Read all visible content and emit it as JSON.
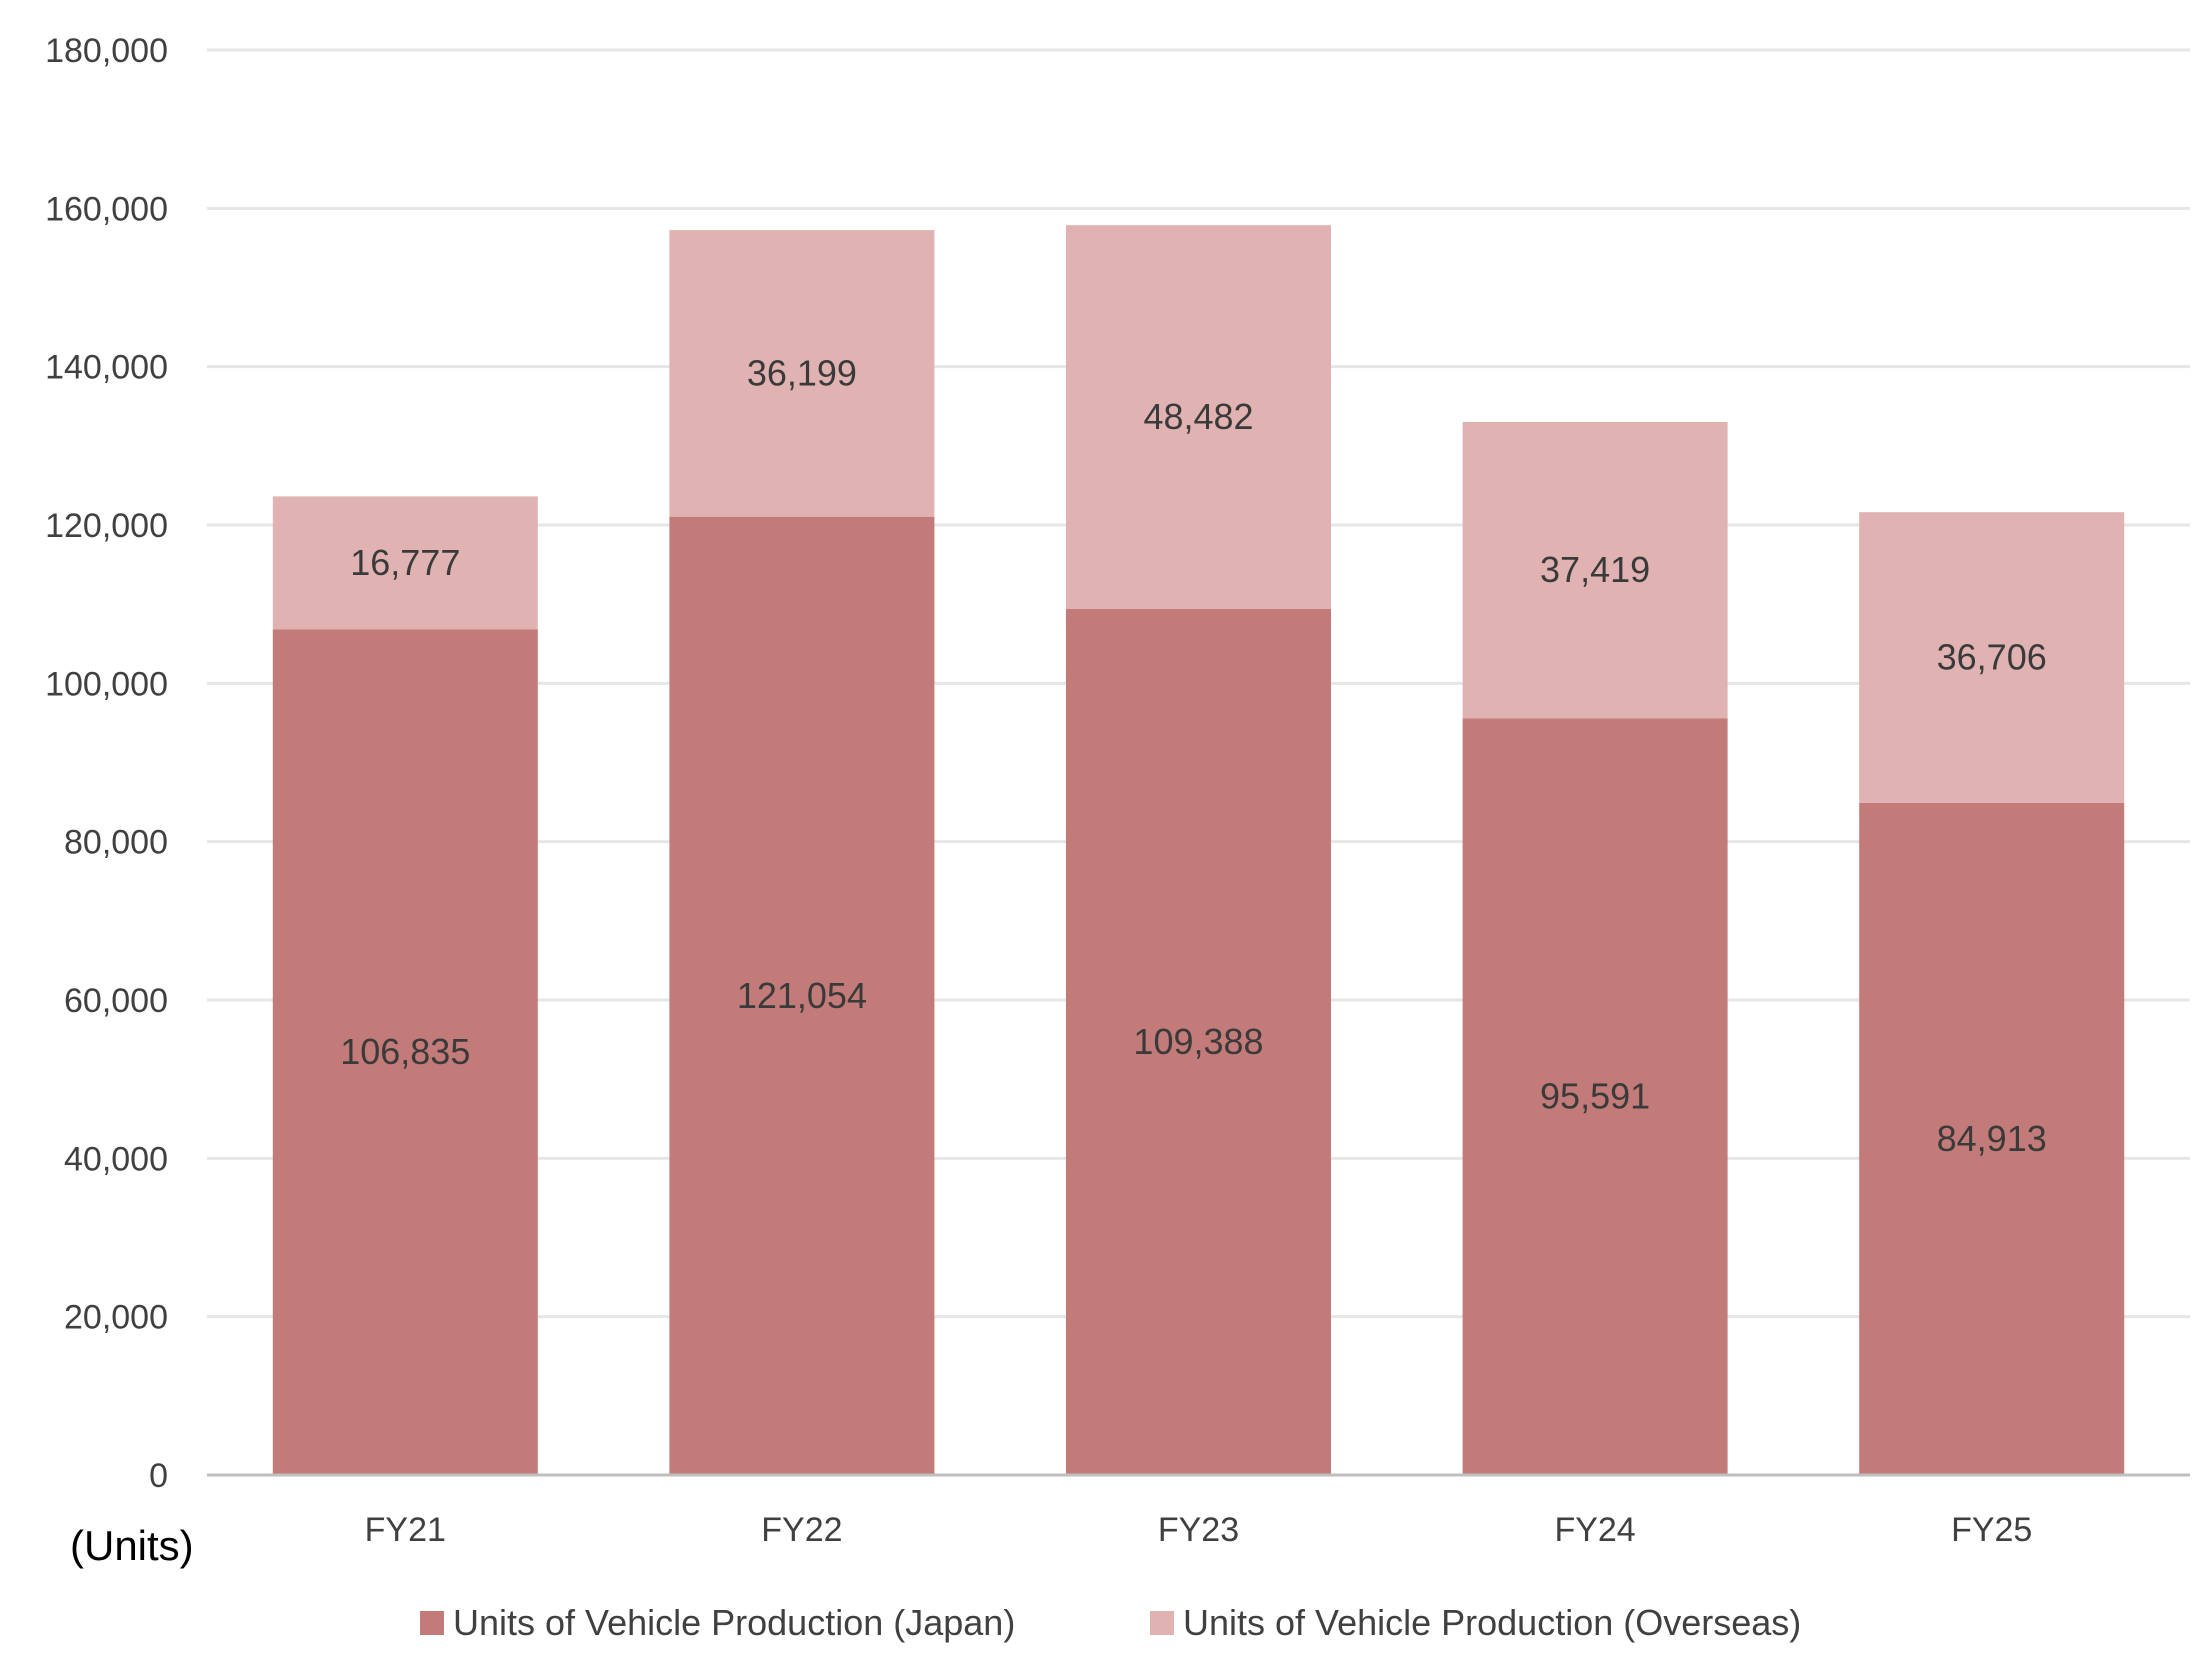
{
  "chart_data": {
    "type": "bar",
    "stacked": true,
    "categories": [
      "FY21",
      "FY22",
      "FY23",
      "FY24",
      "FY25"
    ],
    "series": [
      {
        "name": "Units of Vehicle Production (Japan)",
        "values": [
          106835,
          121054,
          109388,
          95591,
          84913
        ],
        "color": "#c27b78"
      },
      {
        "name": "Units of Vehicle Production (Overseas)",
        "values": [
          16777,
          36199,
          48482,
          37419,
          36706
        ],
        "color": "#e0b2b2"
      }
    ],
    "value_labels": [
      [
        "106,835",
        "121,054",
        "109,388",
        "95,591",
        "84,913"
      ],
      [
        "16,777",
        "36,199",
        "48,482",
        "37,419",
        "36,706"
      ]
    ],
    "ylim": [
      0,
      180000
    ],
    "yticks": [
      0,
      20000,
      40000,
      60000,
      80000,
      100000,
      120000,
      140000,
      160000,
      180000
    ],
    "ytick_labels": [
      "0",
      "20,000",
      "40,000",
      "60,000",
      "80,000",
      "100,000",
      "120,000",
      "140,000",
      "160,000",
      "180,000"
    ],
    "units_label": "(Units)",
    "grid": true,
    "legend_position": "bottom",
    "gridline_color": "#e6e6e6",
    "axis_color": "#bfbfbf"
  }
}
